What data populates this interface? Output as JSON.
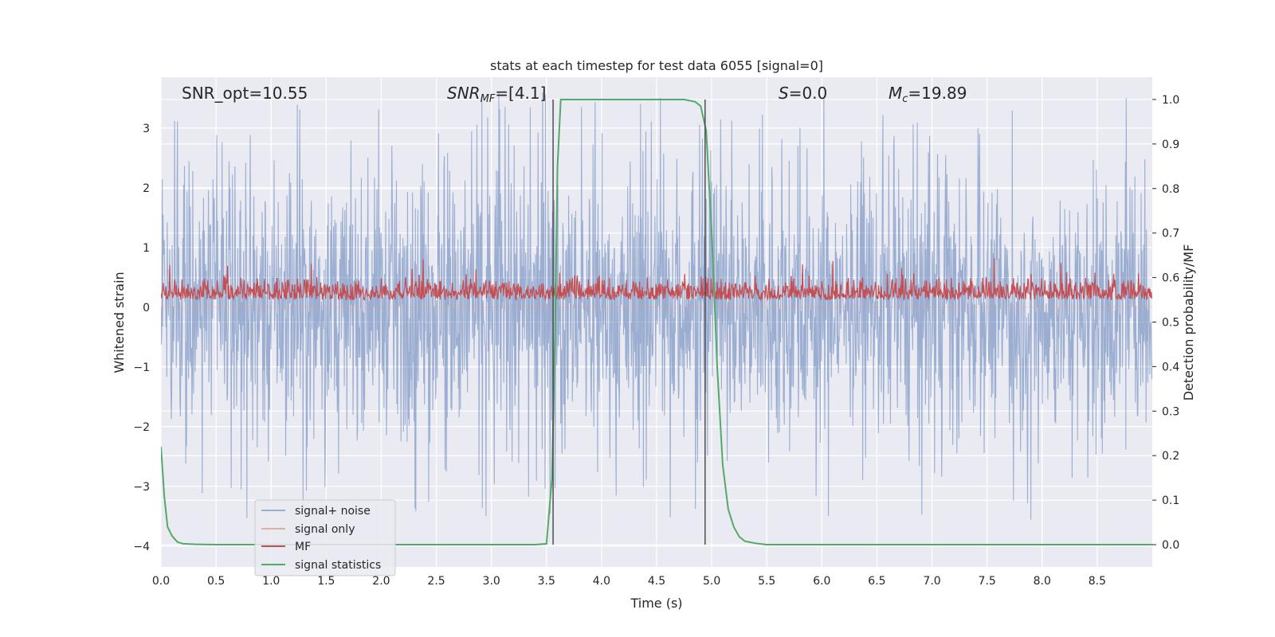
{
  "chart_data": {
    "type": "line",
    "title": "stats at each timestep for test data 6055 [signal=0]",
    "xlabel": "Time (s)",
    "ylabel_left": "Whitened strain",
    "ylabel_right": "Detection probability/MF",
    "xlim": [
      0,
      9.0
    ],
    "ylim_left": [
      -4.35,
      3.85
    ],
    "ylim_right": [
      -0.05,
      1.05
    ],
    "xticks": [
      0.0,
      0.5,
      1.0,
      1.5,
      2.0,
      2.5,
      3.0,
      3.5,
      4.0,
      4.5,
      5.0,
      5.5,
      6.0,
      6.5,
      7.0,
      7.5,
      8.0,
      8.5
    ],
    "xtick_labels": [
      "0.0",
      "0.5",
      "1.0",
      "1.5",
      "2.0",
      "2.5",
      "3.0",
      "3.5",
      "4.0",
      "4.5",
      "5.0",
      "5.5",
      "6.0",
      "6.5",
      "7.0",
      "7.5",
      "8.0",
      "8.5"
    ],
    "yticks_left": [
      -4,
      -3,
      -2,
      -1,
      0,
      1,
      2,
      3
    ],
    "ytick_labels_left": [
      "−4",
      "−3",
      "−2",
      "−1",
      "0",
      "1",
      "2",
      "3"
    ],
    "yticks_right": [
      0.0,
      0.1,
      0.2,
      0.3,
      0.4,
      0.5,
      0.6,
      0.7,
      0.8,
      0.9,
      1.0
    ],
    "ytick_labels_right": [
      "0.0",
      "0.1",
      "0.2",
      "0.3",
      "0.4",
      "0.5",
      "0.6",
      "0.7",
      "0.8",
      "0.9",
      "1.0"
    ],
    "grid": true,
    "legend_position": "lower-left",
    "annotations": {
      "snr_opt": "SNR_opt=10.55",
      "snr_mf_main": "SNR",
      "snr_mf_sub": "MF",
      "snr_mf_rest": "=[4.1]",
      "s_main": "S",
      "s_rest": "=0.0",
      "mc_main": "M",
      "mc_sub": "c",
      "mc_rest": "=19.89"
    },
    "vlines": [
      3.56,
      4.94
    ],
    "series": [
      {
        "name": "signal+ noise",
        "color": "#4c72b0",
        "axis": "left",
        "kind": "noise",
        "core_amplitude": 1.3,
        "max_abs": 3.6
      },
      {
        "name": "signal only",
        "color": "#dd8452",
        "axis": "left",
        "kind": "flat"
      },
      {
        "name": "MF",
        "color": "#c44e52",
        "axis": "right",
        "kind": "noise",
        "range": [
          0.52,
          0.68
        ]
      },
      {
        "name": "signal statistics",
        "color": "#55a868",
        "axis": "right",
        "kind": "line",
        "x": [
          0.0,
          0.03,
          0.06,
          0.1,
          0.15,
          0.2,
          0.3,
          0.5,
          1.0,
          2.0,
          3.0,
          3.4,
          3.5,
          3.55,
          3.58,
          3.6,
          3.63,
          3.7,
          4.0,
          4.5,
          4.75,
          4.85,
          4.9,
          4.95,
          5.0,
          5.05,
          5.1,
          5.15,
          5.2,
          5.25,
          5.3,
          5.4,
          5.5,
          6.0,
          7.0,
          8.0,
          9.0
        ],
        "y": [
          0.22,
          0.11,
          0.04,
          0.02,
          0.006,
          0.002,
          0.001,
          0.0,
          0.0,
          0.0,
          0.0,
          0.0,
          0.002,
          0.15,
          0.5,
          0.85,
          1.0,
          1.0,
          1.0,
          1.0,
          1.0,
          0.995,
          0.985,
          0.93,
          0.7,
          0.4,
          0.18,
          0.08,
          0.04,
          0.018,
          0.008,
          0.003,
          0.0,
          0.0,
          0.0,
          0.0,
          0.0
        ]
      }
    ]
  }
}
